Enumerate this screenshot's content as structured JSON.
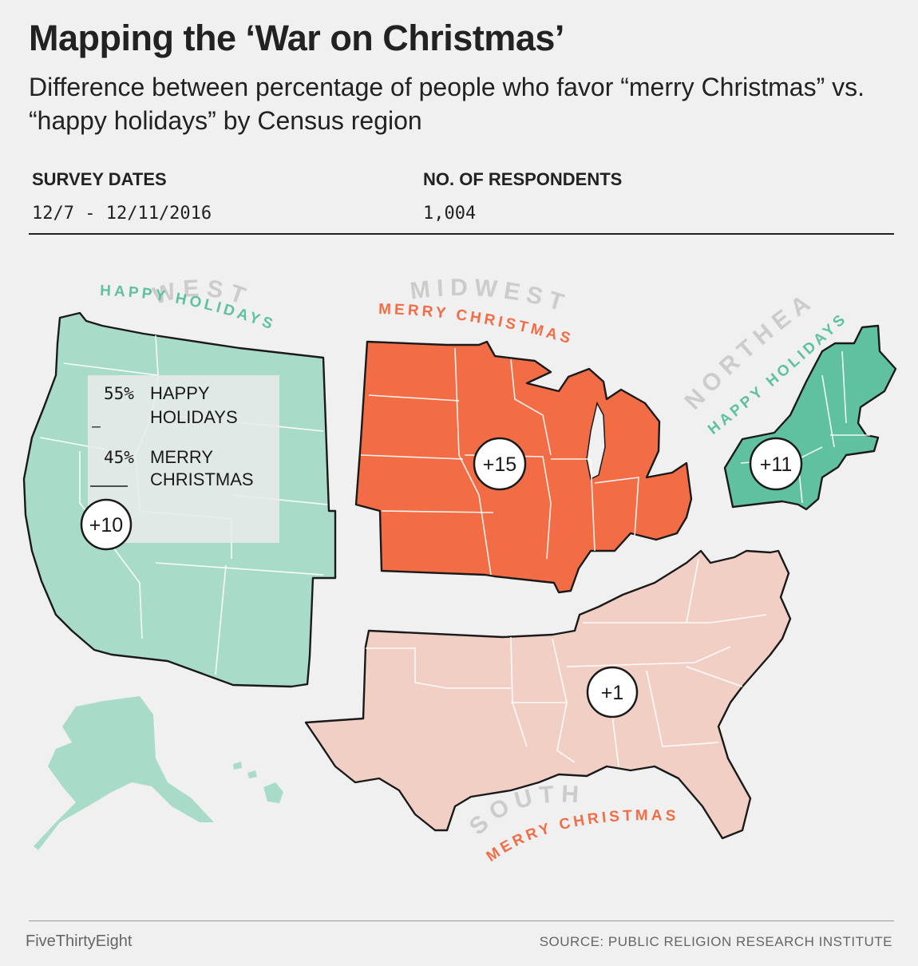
{
  "header": {
    "title": "Mapping the ‘War on Christmas’",
    "subtitle": "Difference between percentage of people who favor “merry Christmas” vs. “happy holidays” by Census region"
  },
  "meta": {
    "survey_dates_label": "SURVEY DATES",
    "survey_dates_value": "12/7 - 12/11/2016",
    "respondents_label": "NO. OF RESPONDENTS",
    "respondents_value": "1,004"
  },
  "legend": {
    "top_value": "55%",
    "top_line1": "HAPPY",
    "top_line2": "HOLIDAYS",
    "minus": "–",
    "bottom_value": "45%",
    "bottom_line1": "MERRY",
    "bottom_line2": "CHRISTMAS"
  },
  "regions": [
    {
      "name": "WEST",
      "preference": "HAPPY HOLIDAYS",
      "difference": "+10",
      "color": "#a8dcc9"
    },
    {
      "name": "MIDWEST",
      "preference": "MERRY CHRISTMAS",
      "difference": "+15",
      "color": "#f26d45"
    },
    {
      "name": "NORTHEAST",
      "preference": "HAPPY HOLIDAYS",
      "difference": "+11",
      "color": "#5fc1a0"
    },
    {
      "name": "SOUTH",
      "preference": "MERRY CHRISTMAS",
      "difference": "+1",
      "color": "#f2cfc4"
    }
  ],
  "colors": {
    "happy_holidays_text": "#5fc1a0",
    "merry_christmas_text": "#f26d45",
    "region_name_text": "#cccccc"
  },
  "footer": {
    "brand": "FiveThirtyEight",
    "source": "SOURCE: PUBLIC RELIGION RESEARCH INSTITUTE"
  }
}
